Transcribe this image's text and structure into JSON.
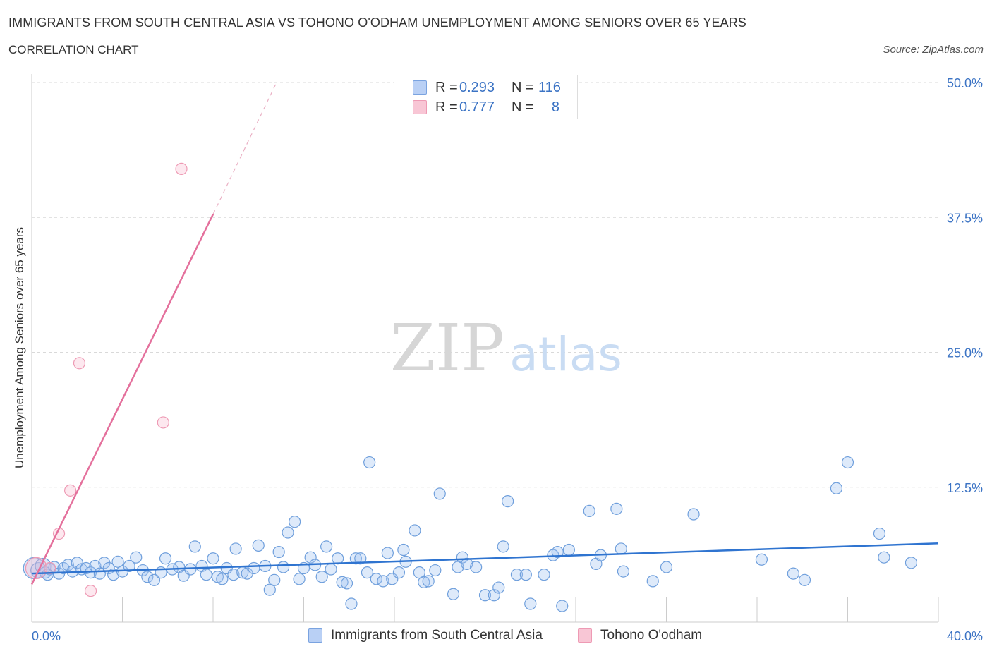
{
  "title": "IMMIGRANTS FROM SOUTH CENTRAL ASIA VS TOHONO O'ODHAM UNEMPLOYMENT AMONG SENIORS OVER 65 YEARS",
  "subtitle": "CORRELATION CHART",
  "source": "Source: ZipAtlas.com",
  "watermark": {
    "zip": "ZIP",
    "atlas": "atlas"
  },
  "legend": {
    "rows": [
      {
        "r_label": "R =",
        "r_value": "0.293",
        "n_label": "N =",
        "n_value": "116",
        "fill": "#b9d0f5",
        "stroke": "#7aa3e0"
      },
      {
        "r_label": "R =",
        "r_value": "0.777",
        "n_label": "N =",
        "n_value": "8",
        "fill": "#f8c6d5",
        "stroke": "#ee9ab4"
      }
    ]
  },
  "colors": {
    "blue_point_fill": "rgba(160,195,240,0.35)",
    "blue_point_stroke": "#6f9fdc",
    "blue_line": "#2f74d0",
    "pink_point_fill": "rgba(248,190,208,0.35)",
    "pink_point_stroke": "#ee9ab4",
    "pink_line": "#e4709c",
    "grid": "#d9d9d9",
    "tick_label": "#3b73c4"
  },
  "chart_data": {
    "type": "scatter",
    "title": "IMMIGRANTS FROM SOUTH CENTRAL ASIA VS TOHONO O'ODHAM UNEMPLOYMENT AMONG SENIORS OVER 65 YEARS",
    "xlabel": "",
    "ylabel": "Unemployment Among Seniors over 65 years",
    "xlim": [
      0,
      40
    ],
    "ylim": [
      0,
      50
    ],
    "x_tick_labels": [
      "0.0%",
      "40.0%"
    ],
    "y_ticks": [
      12.5,
      25.0,
      37.5,
      50.0
    ],
    "y_tick_labels": [
      "12.5%",
      "25.0%",
      "37.5%",
      "50.0%"
    ],
    "legend_position": "top-center",
    "series": [
      {
        "name": "Immigrants from South Central Asia",
        "r": 0.293,
        "n": 116,
        "trend": {
          "x": [
            0,
            40
          ],
          "y": [
            4.5,
            7.3
          ]
        },
        "points": [
          {
            "x": 0.1,
            "y": 5.0,
            "s": 3
          },
          {
            "x": 0.3,
            "y": 4.8,
            "s": 2
          },
          {
            "x": 0.5,
            "y": 5.2,
            "s": 2
          },
          {
            "x": 0.6,
            "y": 4.6,
            "s": 1
          },
          {
            "x": 0.8,
            "y": 4.9,
            "s": 1
          },
          {
            "x": 1.0,
            "y": 5.1,
            "s": 1
          },
          {
            "x": 1.2,
            "y": 4.5,
            "s": 1
          },
          {
            "x": 1.4,
            "y": 5.0,
            "s": 1
          },
          {
            "x": 1.6,
            "y": 5.3,
            "s": 1
          },
          {
            "x": 1.8,
            "y": 4.7,
            "s": 1
          },
          {
            "x": 2.0,
            "y": 5.5,
            "s": 1
          },
          {
            "x": 2.2,
            "y": 4.9,
            "s": 1
          },
          {
            "x": 2.4,
            "y": 5.0,
            "s": 1
          },
          {
            "x": 2.6,
            "y": 4.6,
            "s": 1
          },
          {
            "x": 2.8,
            "y": 5.2,
            "s": 1
          },
          {
            "x": 3.0,
            "y": 4.5,
            "s": 1
          },
          {
            "x": 3.2,
            "y": 5.5,
            "s": 1
          },
          {
            "x": 3.4,
            "y": 5.0,
            "s": 1
          },
          {
            "x": 3.6,
            "y": 4.4,
            "s": 1
          },
          {
            "x": 3.8,
            "y": 5.6,
            "s": 1
          },
          {
            "x": 4.0,
            "y": 4.7,
            "s": 1
          },
          {
            "x": 4.3,
            "y": 5.2,
            "s": 1
          },
          {
            "x": 4.6,
            "y": 6.0,
            "s": 1
          },
          {
            "x": 4.9,
            "y": 4.8,
            "s": 1
          },
          {
            "x": 5.1,
            "y": 4.2,
            "s": 1
          },
          {
            "x": 5.4,
            "y": 3.9,
            "s": 1
          },
          {
            "x": 5.7,
            "y": 4.6,
            "s": 1
          },
          {
            "x": 5.9,
            "y": 5.9,
            "s": 1
          },
          {
            "x": 6.2,
            "y": 4.9,
            "s": 1
          },
          {
            "x": 6.5,
            "y": 5.1,
            "s": 1
          },
          {
            "x": 6.7,
            "y": 4.3,
            "s": 1
          },
          {
            "x": 7.0,
            "y": 4.9,
            "s": 1
          },
          {
            "x": 7.2,
            "y": 7.0,
            "s": 1
          },
          {
            "x": 7.5,
            "y": 5.2,
            "s": 1
          },
          {
            "x": 7.7,
            "y": 4.4,
            "s": 1
          },
          {
            "x": 8.0,
            "y": 5.9,
            "s": 1
          },
          {
            "x": 8.2,
            "y": 4.2,
            "s": 1
          },
          {
            "x": 8.4,
            "y": 4.0,
            "s": 1
          },
          {
            "x": 8.6,
            "y": 5.0,
            "s": 1
          },
          {
            "x": 8.9,
            "y": 4.4,
            "s": 1
          },
          {
            "x": 9.0,
            "y": 6.8,
            "s": 1
          },
          {
            "x": 9.3,
            "y": 4.6,
            "s": 1
          },
          {
            "x": 9.5,
            "y": 4.5,
            "s": 1
          },
          {
            "x": 9.8,
            "y": 5.0,
            "s": 1
          },
          {
            "x": 10.0,
            "y": 7.1,
            "s": 1
          },
          {
            "x": 10.3,
            "y": 5.2,
            "s": 1
          },
          {
            "x": 10.5,
            "y": 3.0,
            "s": 1
          },
          {
            "x": 10.7,
            "y": 3.9,
            "s": 1
          },
          {
            "x": 10.9,
            "y": 6.5,
            "s": 1
          },
          {
            "x": 11.1,
            "y": 5.1,
            "s": 1
          },
          {
            "x": 11.3,
            "y": 8.3,
            "s": 1
          },
          {
            "x": 11.6,
            "y": 9.3,
            "s": 1
          },
          {
            "x": 11.8,
            "y": 4.0,
            "s": 1
          },
          {
            "x": 12.0,
            "y": 5.0,
            "s": 1
          },
          {
            "x": 12.3,
            "y": 6.0,
            "s": 1
          },
          {
            "x": 12.5,
            "y": 5.3,
            "s": 1
          },
          {
            "x": 12.8,
            "y": 4.2,
            "s": 1
          },
          {
            "x": 13.0,
            "y": 7.0,
            "s": 1
          },
          {
            "x": 13.2,
            "y": 4.9,
            "s": 1
          },
          {
            "x": 13.5,
            "y": 5.9,
            "s": 1
          },
          {
            "x": 13.7,
            "y": 3.7,
            "s": 1
          },
          {
            "x": 13.9,
            "y": 3.6,
            "s": 1
          },
          {
            "x": 14.1,
            "y": 1.7,
            "s": 1
          },
          {
            "x": 14.3,
            "y": 5.9,
            "s": 1
          },
          {
            "x": 14.5,
            "y": 5.9,
            "s": 1
          },
          {
            "x": 14.8,
            "y": 4.6,
            "s": 1
          },
          {
            "x": 14.9,
            "y": 14.8,
            "s": 1
          },
          {
            "x": 15.2,
            "y": 4.0,
            "s": 1
          },
          {
            "x": 15.5,
            "y": 3.8,
            "s": 1
          },
          {
            "x": 15.7,
            "y": 6.4,
            "s": 1
          },
          {
            "x": 15.9,
            "y": 4.0,
            "s": 1
          },
          {
            "x": 16.2,
            "y": 4.6,
            "s": 1
          },
          {
            "x": 16.4,
            "y": 6.7,
            "s": 1
          },
          {
            "x": 16.5,
            "y": 5.6,
            "s": 1
          },
          {
            "x": 16.9,
            "y": 8.5,
            "s": 1
          },
          {
            "x": 17.1,
            "y": 4.6,
            "s": 1
          },
          {
            "x": 17.3,
            "y": 3.7,
            "s": 1
          },
          {
            "x": 17.5,
            "y": 3.8,
            "s": 1
          },
          {
            "x": 17.8,
            "y": 4.8,
            "s": 1
          },
          {
            "x": 18.0,
            "y": 11.9,
            "s": 1
          },
          {
            "x": 18.6,
            "y": 2.6,
            "s": 1
          },
          {
            "x": 18.8,
            "y": 5.1,
            "s": 1
          },
          {
            "x": 19.0,
            "y": 6.0,
            "s": 1
          },
          {
            "x": 19.2,
            "y": 5.4,
            "s": 1
          },
          {
            "x": 19.6,
            "y": 5.1,
            "s": 1
          },
          {
            "x": 20.0,
            "y": 2.5,
            "s": 1
          },
          {
            "x": 20.4,
            "y": 2.5,
            "s": 1
          },
          {
            "x": 20.6,
            "y": 3.2,
            "s": 1
          },
          {
            "x": 20.8,
            "y": 7.0,
            "s": 1
          },
          {
            "x": 21.0,
            "y": 11.2,
            "s": 1
          },
          {
            "x": 21.4,
            "y": 4.4,
            "s": 1
          },
          {
            "x": 21.8,
            "y": 4.4,
            "s": 1
          },
          {
            "x": 22.0,
            "y": 1.7,
            "s": 1
          },
          {
            "x": 22.6,
            "y": 4.4,
            "s": 1
          },
          {
            "x": 23.0,
            "y": 6.2,
            "s": 1
          },
          {
            "x": 23.2,
            "y": 6.5,
            "s": 1
          },
          {
            "x": 23.4,
            "y": 1.5,
            "s": 1
          },
          {
            "x": 23.7,
            "y": 6.7,
            "s": 1
          },
          {
            "x": 24.6,
            "y": 10.3,
            "s": 1
          },
          {
            "x": 24.9,
            "y": 5.4,
            "s": 1
          },
          {
            "x": 25.1,
            "y": 6.2,
            "s": 1
          },
          {
            "x": 25.8,
            "y": 10.5,
            "s": 1
          },
          {
            "x": 26.0,
            "y": 6.8,
            "s": 1
          },
          {
            "x": 26.1,
            "y": 4.7,
            "s": 1
          },
          {
            "x": 27.4,
            "y": 3.8,
            "s": 1
          },
          {
            "x": 28.0,
            "y": 5.1,
            "s": 1
          },
          {
            "x": 29.2,
            "y": 10.0,
            "s": 1
          },
          {
            "x": 32.2,
            "y": 5.8,
            "s": 1
          },
          {
            "x": 33.6,
            "y": 4.5,
            "s": 1
          },
          {
            "x": 34.1,
            "y": 3.9,
            "s": 1
          },
          {
            "x": 35.5,
            "y": 12.4,
            "s": 1
          },
          {
            "x": 36.0,
            "y": 14.8,
            "s": 1
          },
          {
            "x": 37.4,
            "y": 8.2,
            "s": 1
          },
          {
            "x": 37.6,
            "y": 6.0,
            "s": 1
          },
          {
            "x": 38.8,
            "y": 5.5,
            "s": 1
          },
          {
            "x": 0.7,
            "y": 4.4,
            "s": 1
          }
        ]
      },
      {
        "name": "Tohono O'odham",
        "r": 0.777,
        "n": 8,
        "trend": {
          "x": [
            0,
            8.0
          ],
          "y": [
            3.5,
            37.8
          ]
        },
        "trend_dashed": {
          "x": [
            8.0,
            10.8
          ],
          "y": [
            37.8,
            50.0
          ]
        },
        "points": [
          {
            "x": 0.2,
            "y": 5.0,
            "s": 3
          },
          {
            "x": 0.8,
            "y": 5.0,
            "s": 1
          },
          {
            "x": 1.2,
            "y": 8.2,
            "s": 1
          },
          {
            "x": 1.7,
            "y": 12.2,
            "s": 1
          },
          {
            "x": 2.1,
            "y": 24.0,
            "s": 1
          },
          {
            "x": 2.6,
            "y": 2.9,
            "s": 1
          },
          {
            "x": 5.8,
            "y": 18.5,
            "s": 1
          },
          {
            "x": 6.6,
            "y": 42.0,
            "s": 1
          }
        ]
      }
    ]
  },
  "bottom_legend": [
    {
      "label": "Immigrants from South Central Asia"
    },
    {
      "label": "Tohono O'odham"
    }
  ]
}
